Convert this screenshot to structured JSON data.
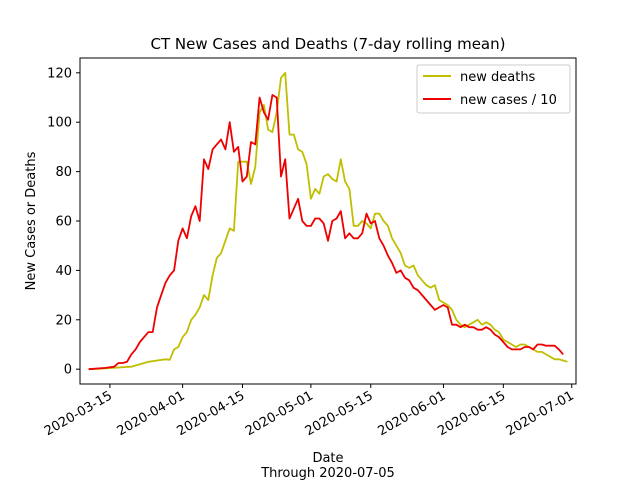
{
  "chart_data": {
    "type": "line",
    "title": "CT New Cases and Deaths (7-day rolling mean)",
    "xlabel": "Date",
    "xlabel_sub": "Through 2020-07-05",
    "ylabel": "New Cases or Deaths",
    "xlim": [
      "2020-03-08",
      "2020-07-02"
    ],
    "ylim": [
      -6,
      126
    ],
    "yticks": [
      0,
      20,
      40,
      60,
      80,
      100,
      120
    ],
    "xticks": [
      "2020-03-15",
      "2020-04-01",
      "2020-04-15",
      "2020-05-01",
      "2020-05-15",
      "2020-06-01",
      "2020-06-15",
      "2020-07-01"
    ],
    "grid": false,
    "legend_position": "upper right",
    "series": [
      {
        "name": "new deaths",
        "color": "#bfbf00",
        "points": [
          [
            "2020-03-10",
            0
          ],
          [
            "2020-03-14",
            0.3
          ],
          [
            "2020-03-18",
            0.8
          ],
          [
            "2020-03-20",
            1
          ],
          [
            "2020-03-22",
            2
          ],
          [
            "2020-03-24",
            3
          ],
          [
            "2020-03-26",
            3.5
          ],
          [
            "2020-03-28",
            4
          ],
          [
            "2020-03-29",
            3.8
          ],
          [
            "2020-03-30",
            8
          ],
          [
            "2020-03-31",
            9
          ],
          [
            "2020-04-01",
            13
          ],
          [
            "2020-04-02",
            15
          ],
          [
            "2020-04-03",
            20
          ],
          [
            "2020-04-04",
            22
          ],
          [
            "2020-04-05",
            25
          ],
          [
            "2020-04-06",
            30
          ],
          [
            "2020-04-07",
            28
          ],
          [
            "2020-04-08",
            38
          ],
          [
            "2020-04-09",
            45
          ],
          [
            "2020-04-10",
            47
          ],
          [
            "2020-04-11",
            52
          ],
          [
            "2020-04-12",
            57
          ],
          [
            "2020-04-13",
            56
          ],
          [
            "2020-04-14",
            84
          ],
          [
            "2020-04-15",
            84
          ],
          [
            "2020-04-16",
            84
          ],
          [
            "2020-04-17",
            75
          ],
          [
            "2020-04-18",
            82
          ],
          [
            "2020-04-19",
            104
          ],
          [
            "2020-04-20",
            107
          ],
          [
            "2020-04-21",
            97
          ],
          [
            "2020-04-22",
            96
          ],
          [
            "2020-04-23",
            104
          ],
          [
            "2020-04-24",
            118
          ],
          [
            "2020-04-25",
            120
          ],
          [
            "2020-04-26",
            95
          ],
          [
            "2020-04-27",
            95
          ],
          [
            "2020-04-28",
            89
          ],
          [
            "2020-04-29",
            88
          ],
          [
            "2020-04-30",
            83
          ],
          [
            "2020-05-01",
            69
          ],
          [
            "2020-05-02",
            73
          ],
          [
            "2020-05-03",
            71
          ],
          [
            "2020-05-04",
            78
          ],
          [
            "2020-05-05",
            79
          ],
          [
            "2020-05-06",
            77
          ],
          [
            "2020-05-07",
            76
          ],
          [
            "2020-05-08",
            85
          ],
          [
            "2020-05-09",
            76
          ],
          [
            "2020-05-10",
            73
          ],
          [
            "2020-05-11",
            58
          ],
          [
            "2020-05-12",
            58
          ],
          [
            "2020-05-13",
            60
          ],
          [
            "2020-05-14",
            59
          ],
          [
            "2020-05-15",
            57
          ],
          [
            "2020-05-16",
            63
          ],
          [
            "2020-05-17",
            63
          ],
          [
            "2020-05-18",
            60
          ],
          [
            "2020-05-19",
            58
          ],
          [
            "2020-05-20",
            53
          ],
          [
            "2020-05-21",
            50
          ],
          [
            "2020-05-22",
            47
          ],
          [
            "2020-05-23",
            42
          ],
          [
            "2020-05-24",
            41
          ],
          [
            "2020-05-25",
            42
          ],
          [
            "2020-05-26",
            38
          ],
          [
            "2020-05-27",
            36
          ],
          [
            "2020-05-28",
            34
          ],
          [
            "2020-05-29",
            33
          ],
          [
            "2020-05-30",
            34
          ],
          [
            "2020-05-31",
            28
          ],
          [
            "2020-06-01",
            27
          ],
          [
            "2020-06-02",
            26
          ],
          [
            "2020-06-03",
            24
          ],
          [
            "2020-06-04",
            20
          ],
          [
            "2020-06-05",
            18
          ],
          [
            "2020-06-06",
            17
          ],
          [
            "2020-06-07",
            18
          ],
          [
            "2020-06-08",
            19
          ],
          [
            "2020-06-09",
            20
          ],
          [
            "2020-06-10",
            18
          ],
          [
            "2020-06-11",
            19
          ],
          [
            "2020-06-12",
            18
          ],
          [
            "2020-06-13",
            16
          ],
          [
            "2020-06-14",
            15
          ],
          [
            "2020-06-15",
            12
          ],
          [
            "2020-06-16",
            11
          ],
          [
            "2020-06-17",
            10
          ],
          [
            "2020-06-18",
            9
          ],
          [
            "2020-06-19",
            10
          ],
          [
            "2020-06-20",
            10
          ],
          [
            "2020-06-21",
            9
          ],
          [
            "2020-06-22",
            8
          ],
          [
            "2020-06-23",
            7
          ],
          [
            "2020-06-24",
            7
          ],
          [
            "2020-06-25",
            6
          ],
          [
            "2020-06-26",
            5
          ],
          [
            "2020-06-27",
            4
          ],
          [
            "2020-06-28",
            4
          ],
          [
            "2020-06-29",
            3.5
          ],
          [
            "2020-06-30",
            3
          ]
        ]
      },
      {
        "name": "new cases / 10",
        "color": "#ee0000",
        "points": [
          [
            "2020-03-10",
            0
          ],
          [
            "2020-03-14",
            0.5
          ],
          [
            "2020-03-16",
            1
          ],
          [
            "2020-03-17",
            2.5
          ],
          [
            "2020-03-18",
            2.5
          ],
          [
            "2020-03-19",
            3
          ],
          [
            "2020-03-20",
            6
          ],
          [
            "2020-03-21",
            8
          ],
          [
            "2020-03-22",
            11
          ],
          [
            "2020-03-23",
            13
          ],
          [
            "2020-03-24",
            15
          ],
          [
            "2020-03-25",
            15
          ],
          [
            "2020-03-26",
            25
          ],
          [
            "2020-03-27",
            30
          ],
          [
            "2020-03-28",
            35
          ],
          [
            "2020-03-29",
            38
          ],
          [
            "2020-03-30",
            40
          ],
          [
            "2020-03-31",
            52
          ],
          [
            "2020-04-01",
            57
          ],
          [
            "2020-04-02",
            53
          ],
          [
            "2020-04-03",
            62
          ],
          [
            "2020-04-04",
            66
          ],
          [
            "2020-04-05",
            60
          ],
          [
            "2020-04-06",
            85
          ],
          [
            "2020-04-07",
            81
          ],
          [
            "2020-04-08",
            89
          ],
          [
            "2020-04-09",
            91
          ],
          [
            "2020-04-10",
            93
          ],
          [
            "2020-04-11",
            89
          ],
          [
            "2020-04-12",
            100
          ],
          [
            "2020-04-13",
            88
          ],
          [
            "2020-04-14",
            90
          ],
          [
            "2020-04-15",
            76
          ],
          [
            "2020-04-16",
            78
          ],
          [
            "2020-04-17",
            92
          ],
          [
            "2020-04-18",
            91
          ],
          [
            "2020-04-19",
            110
          ],
          [
            "2020-04-20",
            104
          ],
          [
            "2020-04-21",
            101
          ],
          [
            "2020-04-22",
            111
          ],
          [
            "2020-04-23",
            110
          ],
          [
            "2020-04-24",
            78
          ],
          [
            "2020-04-25",
            85
          ],
          [
            "2020-04-26",
            61
          ],
          [
            "2020-04-27",
            65
          ],
          [
            "2020-04-28",
            69
          ],
          [
            "2020-04-29",
            60
          ],
          [
            "2020-04-30",
            58
          ],
          [
            "2020-05-01",
            58
          ],
          [
            "2020-05-02",
            61
          ],
          [
            "2020-05-03",
            61
          ],
          [
            "2020-05-04",
            59
          ],
          [
            "2020-05-05",
            52
          ],
          [
            "2020-05-06",
            60
          ],
          [
            "2020-05-07",
            61
          ],
          [
            "2020-05-08",
            64
          ],
          [
            "2020-05-09",
            53
          ],
          [
            "2020-05-10",
            55
          ],
          [
            "2020-05-11",
            53
          ],
          [
            "2020-05-12",
            53
          ],
          [
            "2020-05-13",
            55
          ],
          [
            "2020-05-14",
            63
          ],
          [
            "2020-05-15",
            59
          ],
          [
            "2020-05-16",
            60
          ],
          [
            "2020-05-17",
            53
          ],
          [
            "2020-05-18",
            50
          ],
          [
            "2020-05-19",
            46
          ],
          [
            "2020-05-20",
            43
          ],
          [
            "2020-05-21",
            39
          ],
          [
            "2020-05-22",
            40
          ],
          [
            "2020-05-23",
            37
          ],
          [
            "2020-05-24",
            36
          ],
          [
            "2020-05-25",
            33
          ],
          [
            "2020-05-26",
            32
          ],
          [
            "2020-05-27",
            30
          ],
          [
            "2020-05-28",
            28
          ],
          [
            "2020-05-29",
            26
          ],
          [
            "2020-05-30",
            24
          ],
          [
            "2020-05-31",
            25
          ],
          [
            "2020-06-01",
            26
          ],
          [
            "2020-06-02",
            25
          ],
          [
            "2020-06-03",
            18
          ],
          [
            "2020-06-04",
            18
          ],
          [
            "2020-06-05",
            17
          ],
          [
            "2020-06-06",
            18
          ],
          [
            "2020-06-07",
            17
          ],
          [
            "2020-06-08",
            17
          ],
          [
            "2020-06-09",
            16
          ],
          [
            "2020-06-10",
            16
          ],
          [
            "2020-06-11",
            17
          ],
          [
            "2020-06-12",
            16
          ],
          [
            "2020-06-13",
            14
          ],
          [
            "2020-06-14",
            13
          ],
          [
            "2020-06-15",
            11
          ],
          [
            "2020-06-16",
            9
          ],
          [
            "2020-06-17",
            8
          ],
          [
            "2020-06-18",
            8
          ],
          [
            "2020-06-19",
            8
          ],
          [
            "2020-06-20",
            9
          ],
          [
            "2020-06-21",
            9
          ],
          [
            "2020-06-22",
            8
          ],
          [
            "2020-06-23",
            10
          ],
          [
            "2020-06-24",
            10
          ],
          [
            "2020-06-25",
            9.5
          ],
          [
            "2020-06-26",
            9.5
          ],
          [
            "2020-06-27",
            9.5
          ],
          [
            "2020-06-28",
            8
          ],
          [
            "2020-06-29",
            6
          ]
        ]
      }
    ]
  }
}
